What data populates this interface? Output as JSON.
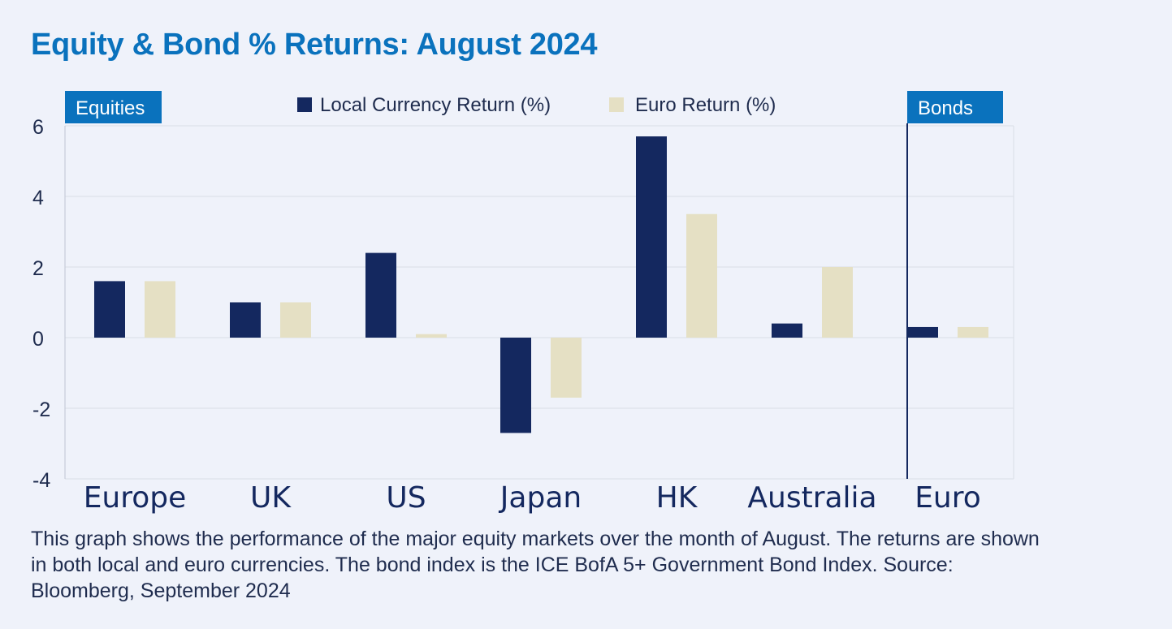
{
  "title": "Equity & Bond % Returns: August 2024",
  "caption": "This graph shows the performance of the major equity markets over the month of August. The returns are shown in both local and euro currencies. The bond index is the ICE BofA 5+ Government Bond Index. Source: Bloomberg, September 2024",
  "colors": {
    "background": "#eff2fa",
    "title": "#0a72bd",
    "local": "#14285f",
    "euro": "#e5e0c4",
    "section_label_bg": "#0a72bd",
    "section_label_text": "#ffffff",
    "axis_text": "#1f2c4e",
    "grid": "#dde1ea"
  },
  "chart_data": {
    "type": "bar",
    "categories": [
      "Europe",
      "UK",
      "US",
      "Japan",
      "HK",
      "Australia",
      "Euro"
    ],
    "series": [
      {
        "name": "Local Currency Return (%)",
        "values": [
          1.6,
          1.0,
          2.4,
          -2.7,
          5.7,
          0.4,
          0.3
        ]
      },
      {
        "name": "Euro Return (%)",
        "values": [
          1.6,
          1.0,
          0.1,
          -1.7,
          3.5,
          2.0,
          0.3
        ]
      }
    ],
    "ylim": [
      -4,
      6
    ],
    "yticks": [
      -4,
      -2,
      0,
      2,
      4,
      6
    ],
    "grid": true,
    "legend": "top-center",
    "sections": [
      {
        "label": "Equities",
        "categories": [
          "Europe",
          "UK",
          "US",
          "Japan",
          "HK",
          "Australia"
        ]
      },
      {
        "label": "Bonds",
        "categories": [
          "Euro"
        ]
      }
    ]
  }
}
